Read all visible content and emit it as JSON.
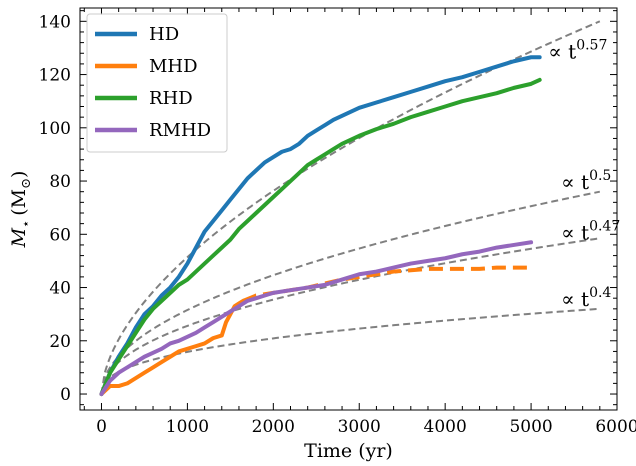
{
  "chart_data": {
    "type": "line",
    "xlabel": "Time (yr)",
    "ylabel_main": "M",
    "ylabel_sub": "⋆",
    "ylabel_unit": "(M",
    "ylabel_unit_sub": "⊙",
    "ylabel_unit_close": ")",
    "xlim": [
      -250,
      6000
    ],
    "ylim": [
      -6,
      145
    ],
    "xticks": [
      0,
      1000,
      2000,
      3000,
      4000,
      5000,
      6000
    ],
    "yticks": [
      0,
      20,
      40,
      60,
      80,
      100,
      120,
      140
    ],
    "grid": false,
    "legend_position": "top-left",
    "legend": [
      "HD",
      "MHD",
      "RHD",
      "RMHD"
    ],
    "colors": {
      "HD": "#1f77b4",
      "MHD": "#ff7f0e",
      "RHD": "#2ca02c",
      "RMHD": "#9467bd",
      "fit": "#808080"
    },
    "series": [
      {
        "name": "HD",
        "style": "solid",
        "points": [
          [
            0,
            0
          ],
          [
            100,
            8
          ],
          [
            200,
            14
          ],
          [
            300,
            19
          ],
          [
            400,
            25
          ],
          [
            500,
            30
          ],
          [
            600,
            33
          ],
          [
            700,
            37
          ],
          [
            800,
            40
          ],
          [
            900,
            44
          ],
          [
            1000,
            49
          ],
          [
            1100,
            55
          ],
          [
            1200,
            61
          ],
          [
            1300,
            65
          ],
          [
            1400,
            69
          ],
          [
            1500,
            73
          ],
          [
            1600,
            77
          ],
          [
            1700,
            81
          ],
          [
            1800,
            84
          ],
          [
            1900,
            87
          ],
          [
            2000,
            89
          ],
          [
            2100,
            91
          ],
          [
            2200,
            92
          ],
          [
            2300,
            94
          ],
          [
            2400,
            97
          ],
          [
            2500,
            99
          ],
          [
            2600,
            101
          ],
          [
            2700,
            103
          ],
          [
            2800,
            104.5
          ],
          [
            2900,
            106
          ],
          [
            3000,
            107.5
          ],
          [
            3200,
            109.5
          ],
          [
            3400,
            111.5
          ],
          [
            3600,
            113.5
          ],
          [
            3800,
            115.5
          ],
          [
            4000,
            117.5
          ],
          [
            4200,
            119
          ],
          [
            4400,
            121
          ],
          [
            4600,
            123
          ],
          [
            4800,
            125
          ],
          [
            5000,
            126.5
          ],
          [
            5100,
            126.5
          ]
        ]
      },
      {
        "name": "MHD",
        "style": "solid",
        "points": [
          [
            0,
            0
          ],
          [
            100,
            3
          ],
          [
            200,
            3
          ],
          [
            300,
            4
          ],
          [
            400,
            6
          ],
          [
            500,
            8
          ],
          [
            600,
            10
          ],
          [
            700,
            12
          ],
          [
            800,
            14
          ],
          [
            900,
            16
          ],
          [
            1000,
            17
          ],
          [
            1100,
            18
          ],
          [
            1200,
            19
          ],
          [
            1300,
            21
          ],
          [
            1400,
            22
          ],
          [
            1450,
            27
          ],
          [
            1500,
            30
          ],
          [
            1550,
            33
          ],
          [
            1600,
            34
          ],
          [
            1650,
            35
          ]
        ]
      },
      {
        "name": "MHD-dashed",
        "style": "dashed",
        "points": [
          [
            1650,
            35
          ],
          [
            1800,
            37
          ],
          [
            2000,
            38
          ],
          [
            2200,
            39
          ],
          [
            2400,
            40
          ],
          [
            2600,
            41.5
          ],
          [
            2800,
            43
          ],
          [
            3000,
            44
          ],
          [
            3200,
            45
          ],
          [
            3400,
            46
          ],
          [
            3600,
            46.5
          ],
          [
            3800,
            47
          ],
          [
            4000,
            47
          ],
          [
            4200,
            47
          ],
          [
            4400,
            47
          ],
          [
            4600,
            47.5
          ],
          [
            4800,
            47.5
          ],
          [
            5000,
            47.5
          ]
        ]
      },
      {
        "name": "RHD",
        "style": "solid",
        "points": [
          [
            0,
            0
          ],
          [
            100,
            8
          ],
          [
            200,
            13
          ],
          [
            300,
            18
          ],
          [
            400,
            23
          ],
          [
            500,
            28
          ],
          [
            600,
            32
          ],
          [
            700,
            35
          ],
          [
            800,
            38
          ],
          [
            900,
            41
          ],
          [
            1000,
            43
          ],
          [
            1100,
            46
          ],
          [
            1200,
            49
          ],
          [
            1300,
            52
          ],
          [
            1400,
            55
          ],
          [
            1500,
            58
          ],
          [
            1600,
            62
          ],
          [
            1700,
            65
          ],
          [
            1800,
            68
          ],
          [
            1900,
            71
          ],
          [
            2000,
            74
          ],
          [
            2100,
            77
          ],
          [
            2200,
            80
          ],
          [
            2300,
            83
          ],
          [
            2400,
            86
          ],
          [
            2500,
            88
          ],
          [
            2600,
            90
          ],
          [
            2700,
            92
          ],
          [
            2800,
            94
          ],
          [
            2900,
            95.5
          ],
          [
            3000,
            97
          ],
          [
            3200,
            99.5
          ],
          [
            3400,
            101.5
          ],
          [
            3600,
            104
          ],
          [
            3800,
            106
          ],
          [
            4000,
            108
          ],
          [
            4200,
            110
          ],
          [
            4400,
            111.5
          ],
          [
            4600,
            113
          ],
          [
            4800,
            115
          ],
          [
            5000,
            116.5
          ],
          [
            5100,
            118
          ]
        ]
      },
      {
        "name": "RMHD",
        "style": "solid",
        "points": [
          [
            0,
            0
          ],
          [
            100,
            5
          ],
          [
            200,
            8
          ],
          [
            300,
            10
          ],
          [
            400,
            12
          ],
          [
            500,
            14
          ],
          [
            600,
            15.5
          ],
          [
            700,
            17
          ],
          [
            800,
            19
          ],
          [
            900,
            20
          ],
          [
            1000,
            21.5
          ],
          [
            1100,
            23
          ],
          [
            1200,
            25
          ],
          [
            1300,
            27
          ],
          [
            1400,
            29
          ],
          [
            1500,
            31
          ],
          [
            1600,
            33
          ],
          [
            1700,
            35
          ],
          [
            1800,
            36
          ],
          [
            1900,
            37
          ],
          [
            2000,
            38
          ],
          [
            2200,
            39
          ],
          [
            2400,
            40
          ],
          [
            2600,
            41
          ],
          [
            2800,
            43
          ],
          [
            3000,
            45
          ],
          [
            3200,
            46
          ],
          [
            3400,
            47.5
          ],
          [
            3600,
            49
          ],
          [
            3800,
            50
          ],
          [
            4000,
            51
          ],
          [
            4200,
            52.5
          ],
          [
            4400,
            53.5
          ],
          [
            4600,
            55
          ],
          [
            4800,
            56
          ],
          [
            5000,
            57
          ]
        ]
      }
    ],
    "fits": [
      {
        "exponent": 0.57,
        "coefficient": 1.022,
        "label": "∝ t",
        "exp_label": "0.57",
        "label_x": 5200,
        "label_y": 126
      },
      {
        "exponent": 0.5,
        "coefficient": 1.0,
        "label": "∝ t",
        "exp_label": "0.5",
        "label_x": 5350,
        "label_y": 77
      },
      {
        "exponent": 0.47,
        "coefficient": 1.0,
        "label": "∝ t",
        "exp_label": "0.47",
        "label_x": 5350,
        "label_y": 58
      },
      {
        "exponent": 0.4,
        "coefficient": 1.0,
        "label": "∝ t",
        "exp_label": "0.4",
        "label_x": 5350,
        "label_y": 33
      }
    ],
    "fit_endpoint_x": 5800,
    "fit_endpoint_y": [
      140,
      76,
      58.5,
      32
    ]
  }
}
